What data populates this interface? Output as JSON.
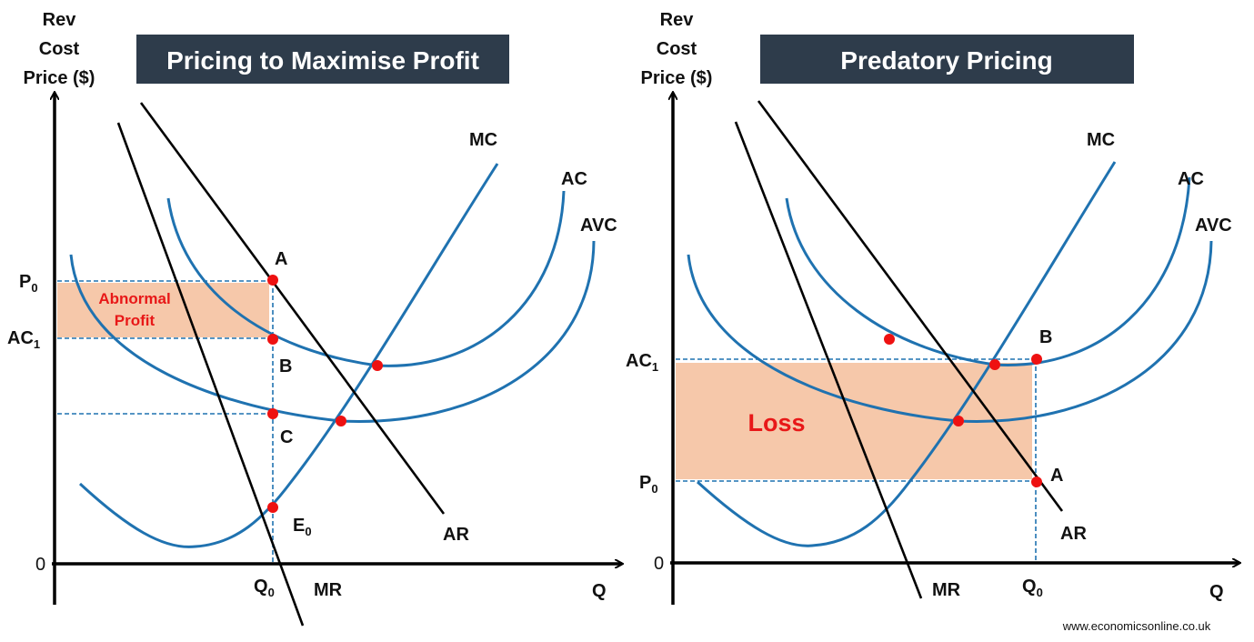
{
  "footer": "www.economicsonline.co.uk",
  "colors": {
    "curves": "#1f72b0",
    "dots": "#ee1111",
    "area": "#f6c8aa",
    "title_bg": "#2e3c4b",
    "area_label": "#e81818"
  },
  "left": {
    "title": "Pricing to Maximise Profit",
    "y_axis_label": [
      "Rev",
      "Cost",
      "Price ($)"
    ],
    "x_axis_label": "Q",
    "origin": "0",
    "curves": {
      "mc": "MC",
      "ac": "AC",
      "avc": "AVC",
      "ar": "AR",
      "mr": "MR"
    },
    "points": {
      "a": "A",
      "b": "B",
      "c": "C",
      "e": "E",
      "e_sub": "0"
    },
    "ticks": {
      "p": "P",
      "p_sub": "0",
      "ac": "AC",
      "ac_sub": "1",
      "q": "Q",
      "q_sub": "0"
    },
    "area_label": [
      "Abnormal",
      "Profit"
    ]
  },
  "right": {
    "title": "Predatory Pricing",
    "y_axis_label": [
      "Rev",
      "Cost",
      "Price ($)"
    ],
    "x_axis_label": "Q",
    "origin": "0",
    "curves": {
      "mc": "MC",
      "ac": "AC",
      "avc": "AVC",
      "ar": "AR",
      "mr": "MR"
    },
    "points": {
      "a": "A",
      "b": "B"
    },
    "ticks": {
      "p": "P",
      "p_sub": "0",
      "ac": "AC",
      "ac_sub": "1",
      "q": "Q",
      "q_sub": "0"
    },
    "area_label": "Loss"
  }
}
